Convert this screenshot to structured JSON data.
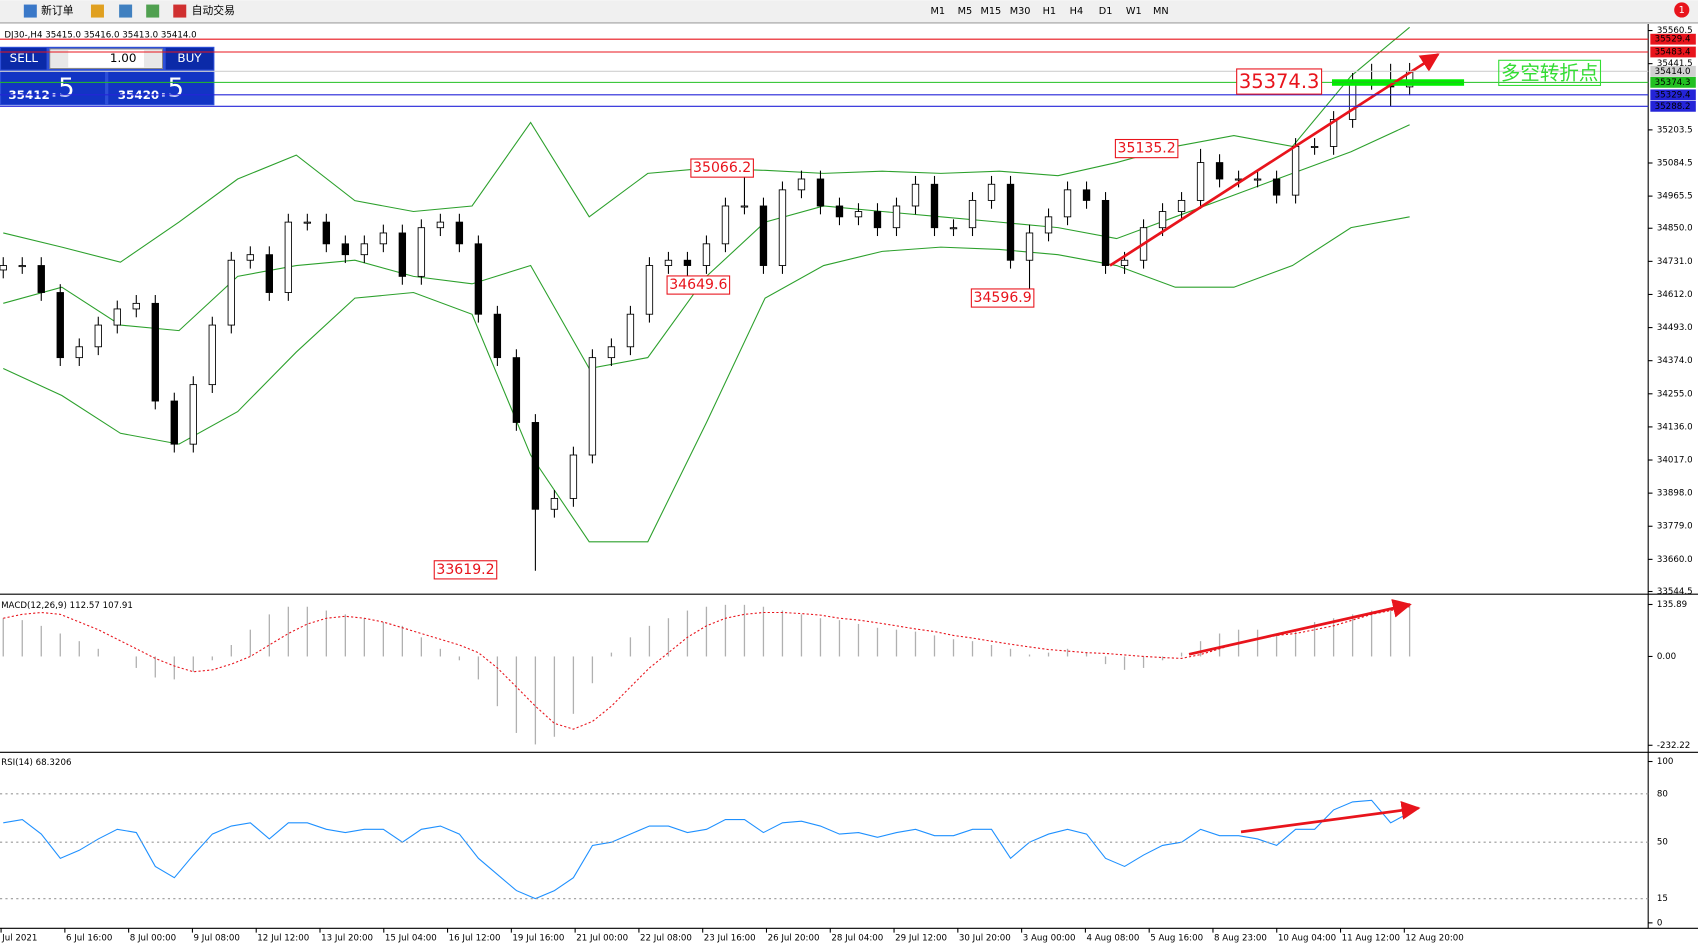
{
  "toolbar": {
    "new_order": "新订单",
    "auto_trading": "自动交易",
    "timeframes": [
      "M1",
      "M5",
      "M15",
      "M30",
      "H1",
      "H4",
      "D1",
      "W1",
      "MN"
    ],
    "notifications": "1"
  },
  "trade_panel": {
    "sell": "SELL",
    "buy": "BUY",
    "lots": "1.00",
    "bid": {
      "lead": "35412",
      "pips": ".5"
    },
    "ask": {
      "lead": "35420",
      "pips": ".5"
    }
  },
  "chart": {
    "header": "DJ30-,H4  35415.0 35416.0 35413.0 35414.0",
    "main": {
      "ylim": [
        33544.5,
        35560.5
      ],
      "yticks": [
        35560.5,
        35441.5,
        35203.5,
        35084.5,
        34965.5,
        {
          "value": 34850,
          "label": "34850.0"
        },
        {
          "value": 34731,
          "label": "34731.0"
        },
        {
          "value": 34612,
          "label": "34612.0"
        },
        {
          "value": 34493,
          "label": "34493.0"
        },
        {
          "value": 34374,
          "label": "34374.0"
        },
        {
          "value": 34255,
          "label": "34255.0"
        },
        {
          "value": 34136,
          "label": "34136.0"
        },
        {
          "value": 34017,
          "label": "34017.0"
        },
        {
          "value": 33898,
          "label": "33898.0"
        },
        {
          "value": 33779,
          "label": "33779.0"
        },
        {
          "value": 33660,
          "label": "33660.0"
        },
        33544.5
      ],
      "open": [
        34700,
        34716,
        34716,
        34619,
        34385,
        34424,
        34502,
        34560,
        34580,
        34229,
        34074,
        34288,
        34502,
        34735,
        34755,
        34619,
        34872,
        34872,
        34794,
        34755,
        34794,
        34833,
        34677,
        34852,
        34872,
        34794,
        34541,
        34385,
        34152,
        33840,
        33879,
        34035,
        34385,
        34424,
        34541,
        34716,
        34735,
        34716,
        34794,
        34930,
        34930,
        34716,
        34988,
        35027,
        34930,
        34891,
        34910,
        34852,
        34930,
        35008,
        34852,
        34852,
        34950,
        35008,
        34735,
        34833,
        34891,
        34988,
        34950,
        34716,
        34735,
        34852,
        34910,
        34950,
        35086,
        35027,
        35027,
        35027,
        34969,
        35144,
        35144,
        35241,
        35378,
        35378,
        35358
      ],
      "high": [
        34746,
        34746,
        34746,
        34649,
        34454,
        34532,
        34590,
        34610,
        34610,
        34259,
        34318,
        34532,
        34765,
        34785,
        34785,
        34902,
        34902,
        34902,
        34824,
        34824,
        34863,
        34863,
        34882,
        34902,
        34902,
        34824,
        34571,
        34415,
        34182,
        33909,
        34065,
        34415,
        34454,
        34571,
        34746,
        34765,
        34765,
        34824,
        34960,
        35066.2,
        34960,
        35018,
        35057,
        35057,
        34960,
        34940,
        34940,
        34960,
        35038,
        35038,
        34882,
        34980,
        35038,
        35038,
        34863,
        34921,
        35018,
        35018,
        34980,
        34765,
        34882,
        34940,
        34980,
        35135.2,
        35116,
        35057,
        35057,
        35057,
        35174,
        35174,
        35271,
        35408,
        35441,
        35441,
        35444
      ],
      "low": [
        34670,
        34686,
        34589,
        34355,
        34355,
        34394,
        34472,
        34530,
        34199,
        34044,
        34044,
        34258,
        34472,
        34705,
        34589,
        34589,
        34842,
        34764,
        34725,
        34725,
        34764,
        34647,
        34647,
        34822,
        34764,
        34511,
        34355,
        34122,
        33619.2,
        33810,
        33849,
        34005,
        34355,
        34394,
        34511,
        34686,
        34649.6,
        34686,
        34764,
        34900,
        34686,
        34686,
        34958,
        34900,
        34861,
        34861,
        34822,
        34822,
        34900,
        34822,
        34822,
        34822,
        34920,
        34705,
        34596.9,
        34803,
        34861,
        34920,
        34686,
        34686,
        34705,
        34822,
        34880,
        34920,
        34997,
        34997,
        34997,
        34939,
        34939,
        35114,
        35114,
        35211,
        35348,
        35288,
        35328
      ],
      "close": [
        34716,
        34716,
        34619,
        34385,
        34424,
        34502,
        34560,
        34580,
        34229,
        34074,
        34288,
        34502,
        34735,
        34755,
        34619,
        34872,
        34872,
        34794,
        34755,
        34794,
        34833,
        34677,
        34852,
        34872,
        34794,
        34541,
        34385,
        34152,
        33840,
        33879,
        34035,
        34385,
        34424,
        34541,
        34716,
        34735,
        34716,
        34794,
        34930,
        34930,
        34716,
        34988,
        35027,
        34930,
        34891,
        34910,
        34852,
        34930,
        35008,
        34852,
        34852,
        34950,
        35008,
        34735,
        34833,
        34891,
        34988,
        34950,
        34716,
        34735,
        34852,
        34910,
        34950,
        35086,
        35027,
        35027,
        35027,
        34969,
        35144,
        35144,
        35241,
        35378,
        35378,
        35358,
        35414
      ],
      "bands": {
        "color": "#2ca02c",
        "upper": [
          34833,
          34782,
          34728,
          34872,
          35027,
          35113,
          34949,
          34910,
          34930,
          35230,
          34891,
          35047,
          35066,
          35058,
          35047,
          35055,
          35047,
          35055,
          35039,
          35086,
          35144,
          35183,
          35144,
          35397,
          35572
        ],
        "middle": [
          34580,
          34638,
          34502,
          34482,
          34677,
          34716,
          34735,
          34677,
          34650,
          34716,
          34346,
          34385,
          34677,
          34872,
          34930,
          34910,
          34891,
          34872,
          34852,
          34813,
          34891,
          34969,
          35047,
          35125,
          35222
        ],
        "lower": [
          34346,
          34249,
          34113,
          34074,
          34191,
          34405,
          34599,
          34619,
          34541,
          34035,
          33723,
          33723,
          34152,
          34599,
          34716,
          34767,
          34782,
          34774,
          34755,
          34716,
          34638,
          34638,
          34716,
          34852,
          34891
        ]
      },
      "levels": [
        {
          "value": 35529.4,
          "color": "#e8141c"
        },
        {
          "value": 35483.4,
          "color": "#e8141c"
        },
        {
          "value": {
            "value": 35414,
            "label": "35414.0"
          },
          "color": "#d0d0d0"
        },
        {
          "value": 35374.3,
          "color": "#22c022"
        },
        {
          "value": 35329.4,
          "color": "#2424d8"
        },
        {
          "value": 35288.2,
          "color": "#2424d8"
        }
      ],
      "annotations": [
        "35066.2",
        "34649.6",
        "34596.9",
        "35135.2",
        "33619.2",
        "35374.3",
        "多空转折点"
      ]
    },
    "macd": {
      "label": "MACD(12,26,9) 112.57 107.91",
      "ylim": [
        -232.22,
        135.89
      ],
      "yticks": [
        135.89,
        {
          "value": 0,
          "label": "0.00"
        },
        -232.22
      ],
      "histogram": [
        100,
        95,
        80,
        60,
        40,
        20,
        0,
        -30,
        -55,
        -60,
        -40,
        -10,
        30,
        70,
        110,
        130,
        130,
        120,
        110,
        100,
        90,
        80,
        50,
        20,
        -10,
        -60,
        -130,
        -200,
        -230,
        -210,
        -150,
        -70,
        10,
        50,
        80,
        100,
        120,
        130,
        135,
        135,
        130,
        120,
        110,
        100,
        95,
        85,
        75,
        70,
        65,
        55,
        45,
        40,
        30,
        20,
        5,
        10,
        20,
        10,
        -20,
        -35,
        -30,
        -10,
        10,
        40,
        60,
        70,
        70,
        60,
        70,
        90,
        100,
        110,
        120,
        125,
        135
      ],
      "signal": [
        100,
        110,
        115,
        110,
        90,
        70,
        45,
        20,
        -5,
        -25,
        -40,
        -35,
        -20,
        0,
        30,
        60,
        85,
        100,
        105,
        100,
        90,
        75,
        60,
        45,
        30,
        10,
        -30,
        -80,
        -130,
        -175,
        -190,
        -170,
        -130,
        -80,
        -30,
        10,
        50,
        80,
        100,
        110,
        115,
        115,
        112,
        108,
        100,
        95,
        88,
        80,
        72,
        65,
        55,
        48,
        40,
        32,
        25,
        18,
        14,
        10,
        8,
        4,
        0,
        -3,
        -5,
        5,
        20,
        35,
        45,
        55,
        60,
        70,
        80,
        95,
        110,
        120,
        130
      ]
    },
    "rsi": {
      "label": "RSI(14) 68.3206",
      "ylim": [
        0,
        100
      ],
      "yticks": [
        100,
        80,
        50,
        15,
        0
      ],
      "color": "#1e90ff",
      "values": [
        62,
        64,
        55,
        40,
        45,
        52,
        58,
        56,
        35,
        28,
        42,
        55,
        60,
        62,
        52,
        62,
        62,
        58,
        56,
        58,
        58,
        50,
        58,
        60,
        55,
        40,
        30,
        20,
        15,
        20,
        28,
        48,
        50,
        55,
        60,
        60,
        56,
        58,
        64,
        64,
        56,
        62,
        63,
        60,
        55,
        56,
        53,
        56,
        58,
        54,
        54,
        58,
        58,
        40,
        50,
        55,
        58,
        55,
        40,
        35,
        42,
        48,
        50,
        58,
        54,
        54,
        52,
        48,
        58,
        58,
        70,
        75,
        76,
        62,
        68.3206
      ]
    },
    "time_labels": [
      "Jul 2021",
      "6 Jul 16:00",
      "8 Jul 00:00",
      "9 Jul 08:00",
      "12 Jul 12:00",
      "13 Jul 20:00",
      "15 Jul 04:00",
      "16 Jul 12:00",
      "19 Jul 16:00",
      "21 Jul 00:00",
      "22 Jul 08:00",
      "23 Jul 16:00",
      "26 Jul 20:00",
      "28 Jul 04:00",
      "29 Jul 12:00",
      "30 Jul 20:00",
      "3 Aug 00:00",
      "4 Aug 08:00",
      "5 Aug 16:00",
      "8 Aug 23:00",
      "10 Aug 04:00",
      "11 Aug 12:00",
      "12 Aug 20:00"
    ]
  }
}
